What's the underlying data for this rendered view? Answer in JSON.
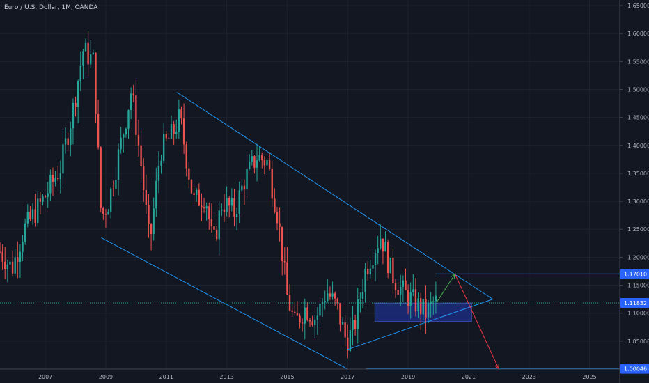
{
  "header": {
    "title": "Euro / U.S. Dollar, 1M, OANDA"
  },
  "chart_data": {
    "type": "candlestick",
    "title": "Euro / U.S. Dollar, 1M, OANDA",
    "ylim": [
      1.0,
      1.66
    ],
    "xlim": [
      2005.5,
      2026.0
    ],
    "y_ticks": [
      "1.65000",
      "1.60000",
      "1.55000",
      "1.50000",
      "1.45000",
      "1.40000",
      "1.35000",
      "1.30000",
      "1.25000",
      "1.20000",
      "1.15000",
      "1.10000",
      "1.05000"
    ],
    "x_ticks": [
      "2007",
      "2009",
      "2011",
      "2013",
      "2015",
      "2017",
      "2019",
      "2021",
      "2023",
      "2025"
    ],
    "price_tags": [
      {
        "label": "1.17010",
        "value": 1.1701
      },
      {
        "label": "1.11832",
        "value": 1.11832
      },
      {
        "label": "1.00046",
        "value": 1.00046
      }
    ],
    "monthly_close_anchors": [
      [
        2005.5,
        1.21
      ],
      [
        2005.9,
        1.18
      ],
      [
        2006.3,
        1.25
      ],
      [
        2006.9,
        1.3
      ],
      [
        2007.5,
        1.36
      ],
      [
        2007.9,
        1.46
      ],
      [
        2008.25,
        1.57
      ],
      [
        2008.6,
        1.55
      ],
      [
        2008.85,
        1.27
      ],
      [
        2009.1,
        1.3
      ],
      [
        2009.6,
        1.43
      ],
      [
        2009.85,
        1.5
      ],
      [
        2010.2,
        1.35
      ],
      [
        2010.45,
        1.22
      ],
      [
        2010.8,
        1.39
      ],
      [
        2011.2,
        1.42
      ],
      [
        2011.45,
        1.45
      ],
      [
        2011.9,
        1.3
      ],
      [
        2012.3,
        1.31
      ],
      [
        2012.55,
        1.22
      ],
      [
        2012.85,
        1.3
      ],
      [
        2013.25,
        1.28
      ],
      [
        2013.6,
        1.34
      ],
      [
        2014.0,
        1.38
      ],
      [
        2014.35,
        1.37
      ],
      [
        2014.7,
        1.27
      ],
      [
        2015.0,
        1.13
      ],
      [
        2015.25,
        1.08
      ],
      [
        2015.6,
        1.11
      ],
      [
        2015.95,
        1.09
      ],
      [
        2016.3,
        1.14
      ],
      [
        2016.65,
        1.11
      ],
      [
        2016.95,
        1.05
      ],
      [
        2017.2,
        1.07
      ],
      [
        2017.6,
        1.18
      ],
      [
        2018.1,
        1.24
      ],
      [
        2018.45,
        1.17
      ],
      [
        2018.8,
        1.14
      ],
      [
        2019.2,
        1.12
      ],
      [
        2019.6,
        1.1
      ],
      [
        2019.85,
        1.12
      ],
      [
        2019.95,
        1.12
      ]
    ],
    "drawings": {
      "channel_upper": [
        [
          2011.35,
          1.495
        ],
        [
          2021.8,
          1.125
        ]
      ],
      "channel_lower": [
        [
          2008.85,
          1.235
        ],
        [
          2017.0,
          1.0
        ]
      ],
      "triangle_lower": [
        [
          2017.0,
          1.035
        ],
        [
          2021.8,
          1.125
        ]
      ],
      "demand_zone": {
        "x": [
          2017.9,
          2021.1
        ],
        "y": [
          1.085,
          1.118
        ]
      },
      "target_upper": {
        "y": 1.1701,
        "x_start": 2019.9
      },
      "target_lower": {
        "y": 1.00046,
        "x_start": 2017.6
      },
      "current_price_line": 1.11832,
      "arrow_up": [
        [
          2019.95,
          1.12
        ],
        [
          2020.55,
          1.17
        ]
      ],
      "arrow_down": [
        [
          2020.55,
          1.17
        ],
        [
          2022.0,
          1.0
        ]
      ]
    },
    "colors": {
      "up": "#26a69a",
      "down": "#ef5350",
      "lines": "#2196f3",
      "zone": "#1e2f8a",
      "tag": "#2962ff",
      "arrow_up": "#4caf50",
      "arrow_down": "#f23645"
    },
    "grid": true,
    "legend": "none"
  }
}
